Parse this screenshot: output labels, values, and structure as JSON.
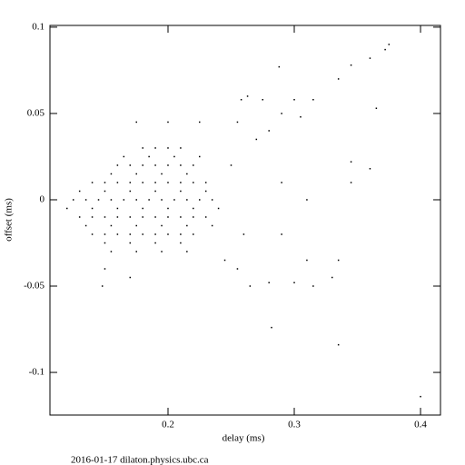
{
  "chart_data": {
    "type": "scatter",
    "x_label": "delay (ms)",
    "y_label": "offset (ms)",
    "footer": "2016-01-17  dilaton.physics.ubc.ca",
    "xlim": [
      0.1065,
      0.4158
    ],
    "ylim": [
      -0.1247,
      0.101
    ],
    "xticks": [
      0.2,
      0.3,
      0.4
    ],
    "yticks": [
      0.1,
      0.05,
      0,
      -0.05,
      -0.1
    ],
    "x": [
      0.16,
      0.17,
      0.18,
      0.19,
      0.2,
      0.21,
      0.22,
      0.14,
      0.15,
      0.16,
      0.17,
      0.18,
      0.19,
      0.2,
      0.21,
      0.22,
      0.23,
      0.125,
      0.135,
      0.145,
      0.155,
      0.165,
      0.175,
      0.185,
      0.195,
      0.205,
      0.215,
      0.225,
      0.235,
      0.13,
      0.14,
      0.15,
      0.16,
      0.17,
      0.18,
      0.19,
      0.2,
      0.21,
      0.22,
      0.23,
      0.14,
      0.15,
      0.16,
      0.17,
      0.18,
      0.19,
      0.2,
      0.21,
      0.22,
      0.18,
      0.19,
      0.2,
      0.21,
      0.155,
      0.175,
      0.195,
      0.215,
      0.155,
      0.175,
      0.195,
      0.215,
      0.13,
      0.15,
      0.17,
      0.19,
      0.21,
      0.23,
      0.12,
      0.14,
      0.16,
      0.18,
      0.2,
      0.22,
      0.24,
      0.135,
      0.155,
      0.175,
      0.195,
      0.215,
      0.235,
      0.15,
      0.17,
      0.19,
      0.21,
      0.165,
      0.185,
      0.205,
      0.225,
      0.375,
      0.372,
      0.36,
      0.345,
      0.288,
      0.335,
      0.3,
      0.315,
      0.263,
      0.258,
      0.275,
      0.365,
      0.29,
      0.305,
      0.255,
      0.345,
      0.36,
      0.345,
      0.335,
      0.33,
      0.3,
      0.315,
      0.28,
      0.265,
      0.282,
      0.335,
      0.4,
      0.31,
      0.29,
      0.29,
      0.31,
      0.245,
      0.255,
      0.148,
      0.15,
      0.17,
      0.175,
      0.2,
      0.225,
      0.27,
      0.28,
      0.25,
      0.26
    ],
    "series": [
      {
        "color": "#000000",
        "values": [
          0.02,
          0.02,
          0.02,
          0.02,
          0.02,
          0.02,
          0.02,
          0.01,
          0.01,
          0.01,
          0.01,
          0.01,
          0.01,
          0.01,
          0.01,
          0.01,
          0.01,
          0,
          0,
          0,
          0,
          0,
          0,
          0,
          0,
          0,
          0,
          0,
          0,
          -0.01,
          -0.01,
          -0.01,
          -0.01,
          -0.01,
          -0.01,
          -0.01,
          -0.01,
          -0.01,
          -0.01,
          -0.01,
          -0.02,
          -0.02,
          -0.02,
          -0.02,
          -0.02,
          -0.02,
          -0.02,
          -0.02,
          -0.02,
          0.03,
          0.03,
          0.03,
          0.03,
          -0.03,
          -0.03,
          -0.03,
          -0.03,
          0.015,
          0.015,
          0.015,
          0.015,
          0.005,
          0.005,
          0.005,
          0.005,
          0.005,
          0.005,
          -0.005,
          -0.005,
          -0.005,
          -0.005,
          -0.005,
          -0.005,
          -0.005,
          -0.015,
          -0.015,
          -0.015,
          -0.015,
          -0.015,
          -0.015,
          -0.025,
          -0.025,
          -0.025,
          -0.025,
          0.025,
          0.025,
          0.025,
          0.025,
          0.09,
          0.087,
          0.082,
          0.078,
          0.077,
          0.07,
          0.058,
          0.058,
          0.06,
          0.058,
          0.058,
          0.053,
          0.05,
          0.048,
          0.045,
          0.022,
          0.018,
          0.01,
          -0.035,
          -0.045,
          -0.048,
          -0.05,
          -0.048,
          -0.05,
          -0.074,
          -0.084,
          -0.114,
          -0.035,
          -0.02,
          0.01,
          0,
          -0.035,
          -0.04,
          -0.05,
          -0.04,
          -0.045,
          0.045,
          0.045,
          0.045,
          0.035,
          0.04,
          0.02,
          -0.02
        ]
      }
    ]
  }
}
